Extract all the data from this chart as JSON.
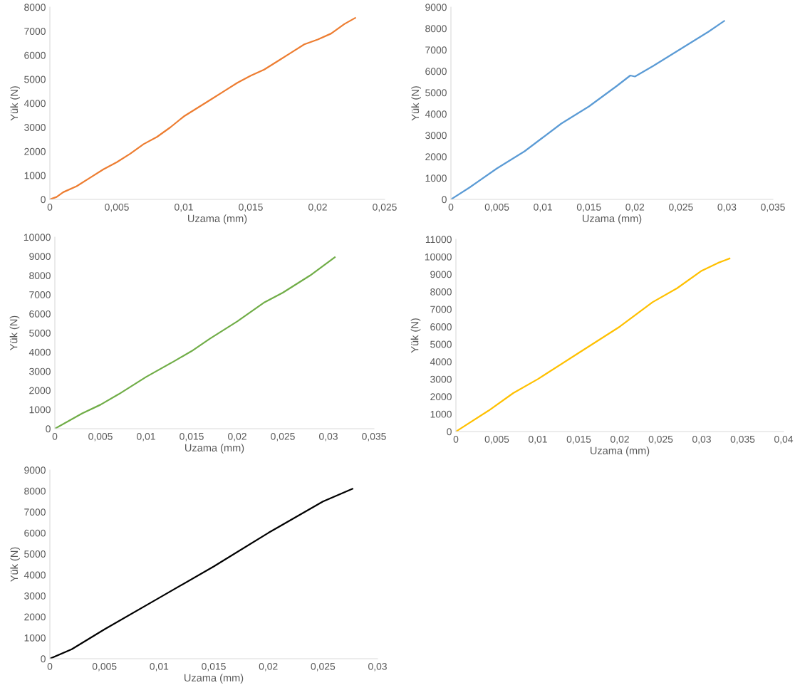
{
  "chart_data": [
    {
      "type": "line",
      "xlabel": "Uzama (mm)",
      "ylabel": "Yük (N)",
      "xlim": [
        0,
        0.025
      ],
      "ylim": [
        0,
        8000
      ],
      "xticks": [
        0,
        {
          "value": 0.005,
          "label": "0,005"
        },
        {
          "value": 0.01,
          "label": "0,01"
        },
        {
          "value": 0.015,
          "label": "0,015"
        },
        {
          "value": 0.02,
          "label": "0,02"
        },
        {
          "value": 0.025,
          "label": "0,025"
        }
      ],
      "yticks": [
        0,
        1000,
        2000,
        3000,
        4000,
        5000,
        6000,
        7000,
        8000
      ],
      "x": [
        0,
        0.0005,
        0.001,
        0.002,
        0.003,
        0.004,
        0.005,
        0.006,
        0.007,
        0.008,
        0.009,
        0.01,
        0.011,
        0.012,
        0.013,
        0.014,
        0.015,
        0.016,
        0.017,
        0.018,
        0.019,
        0.02,
        0.021,
        0.022,
        0.0228
      ],
      "series": [
        {
          "color": "#ed7d31",
          "values": [
            0,
            100,
            300,
            550,
            900,
            1250,
            1550,
            1900,
            2300,
            2600,
            3000,
            3450,
            3800,
            4150,
            4500,
            4850,
            5150,
            5400,
            5750,
            6100,
            6450,
            6650,
            6900,
            7300,
            7550
          ]
        }
      ]
    },
    {
      "type": "line",
      "xlabel": "Uzama (mm)",
      "ylabel": "Yük (N)",
      "xlim": [
        0,
        0.035
      ],
      "ylim": [
        0,
        9000
      ],
      "xticks": [
        0,
        {
          "value": 0.005,
          "label": "0,005"
        },
        {
          "value": 0.01,
          "label": "0,01"
        },
        {
          "value": 0.015,
          "label": "0,015"
        },
        {
          "value": 0.02,
          "label": "0,02"
        },
        {
          "value": 0.025,
          "label": "0,025"
        },
        {
          "value": 0.03,
          "label": "0,03"
        },
        {
          "value": 0.035,
          "label": "0,035"
        }
      ],
      "yticks": [
        0,
        1000,
        2000,
        3000,
        4000,
        5000,
        6000,
        7000,
        8000,
        9000
      ],
      "x": [
        0,
        0.002,
        0.005,
        0.008,
        0.01,
        0.012,
        0.015,
        0.018,
        0.0195,
        0.02,
        0.022,
        0.025,
        0.028,
        0.0297
      ],
      "series": [
        {
          "color": "#5b9bd5",
          "values": [
            0,
            550,
            1450,
            2250,
            2900,
            3550,
            4350,
            5300,
            5800,
            5750,
            6250,
            7050,
            7850,
            8350
          ]
        }
      ]
    },
    {
      "type": "line",
      "xlabel": "Uzama (mm)",
      "ylabel": "Yük (N)",
      "xlim": [
        0,
        0.035
      ],
      "ylim": [
        0,
        10000
      ],
      "xticks": [
        0,
        {
          "value": 0.005,
          "label": "0,005"
        },
        {
          "value": 0.01,
          "label": "0,01"
        },
        {
          "value": 0.015,
          "label": "0,015"
        },
        {
          "value": 0.02,
          "label": "0,02"
        },
        {
          "value": 0.025,
          "label": "0,025"
        },
        {
          "value": 0.03,
          "label": "0,03"
        },
        {
          "value": 0.035,
          "label": "0,035"
        }
      ],
      "yticks": [
        0,
        1000,
        2000,
        3000,
        4000,
        5000,
        6000,
        7000,
        8000,
        9000,
        10000
      ],
      "x": [
        0,
        0.003,
        0.005,
        0.007,
        0.01,
        0.013,
        0.015,
        0.017,
        0.02,
        0.023,
        0.025,
        0.028,
        0.0307
      ],
      "series": [
        {
          "color": "#70ad47",
          "values": [
            0,
            800,
            1250,
            1800,
            2700,
            3500,
            4050,
            4700,
            5600,
            6600,
            7100,
            8000,
            8950
          ]
        }
      ]
    },
    {
      "type": "line",
      "xlabel": "Uzama (mm)",
      "ylabel": "Yük (N)",
      "xlim": [
        0,
        0.04
      ],
      "ylim": [
        0,
        11000
      ],
      "xticks": [
        0,
        {
          "value": 0.005,
          "label": "0,005"
        },
        {
          "value": 0.01,
          "label": "0,01"
        },
        {
          "value": 0.015,
          "label": "0,015"
        },
        {
          "value": 0.02,
          "label": "0,02"
        },
        {
          "value": 0.025,
          "label": "0,025"
        },
        {
          "value": 0.03,
          "label": "0,03"
        },
        {
          "value": 0.035,
          "label": "0,035"
        },
        {
          "value": 0.04,
          "label": "0,04"
        }
      ],
      "yticks": [
        0,
        1000,
        2000,
        3000,
        4000,
        5000,
        6000,
        7000,
        8000,
        9000,
        10000,
        11000
      ],
      "x": [
        0,
        0.001,
        0.004,
        0.007,
        0.01,
        0.015,
        0.02,
        0.024,
        0.027,
        0.03,
        0.032,
        0.0334
      ],
      "series": [
        {
          "color": "#ffc000",
          "values": [
            0,
            300,
            1200,
            2200,
            3000,
            4500,
            6000,
            7400,
            8200,
            9200,
            9650,
            9900
          ]
        }
      ]
    },
    {
      "type": "line",
      "xlabel": "Uzama (mm)",
      "ylabel": "Yük (N)",
      "xlim": [
        0,
        0.03
      ],
      "ylim": [
        0,
        9000
      ],
      "xticks": [
        0,
        {
          "value": 0.005,
          "label": "0,005"
        },
        {
          "value": 0.01,
          "label": "0,01"
        },
        {
          "value": 0.015,
          "label": "0,015"
        },
        {
          "value": 0.02,
          "label": "0,02"
        },
        {
          "value": 0.025,
          "label": "0,025"
        },
        {
          "value": 0.03,
          "label": "0,03"
        }
      ],
      "yticks": [
        0,
        1000,
        2000,
        3000,
        4000,
        5000,
        6000,
        7000,
        8000,
        9000
      ],
      "x": [
        0,
        0.002,
        0.005,
        0.01,
        0.015,
        0.02,
        0.021,
        0.025,
        0.0277
      ],
      "series": [
        {
          "color": "#000000",
          "values": [
            0,
            450,
            1400,
            2900,
            4400,
            6000,
            6300,
            7500,
            8100
          ]
        }
      ]
    }
  ]
}
